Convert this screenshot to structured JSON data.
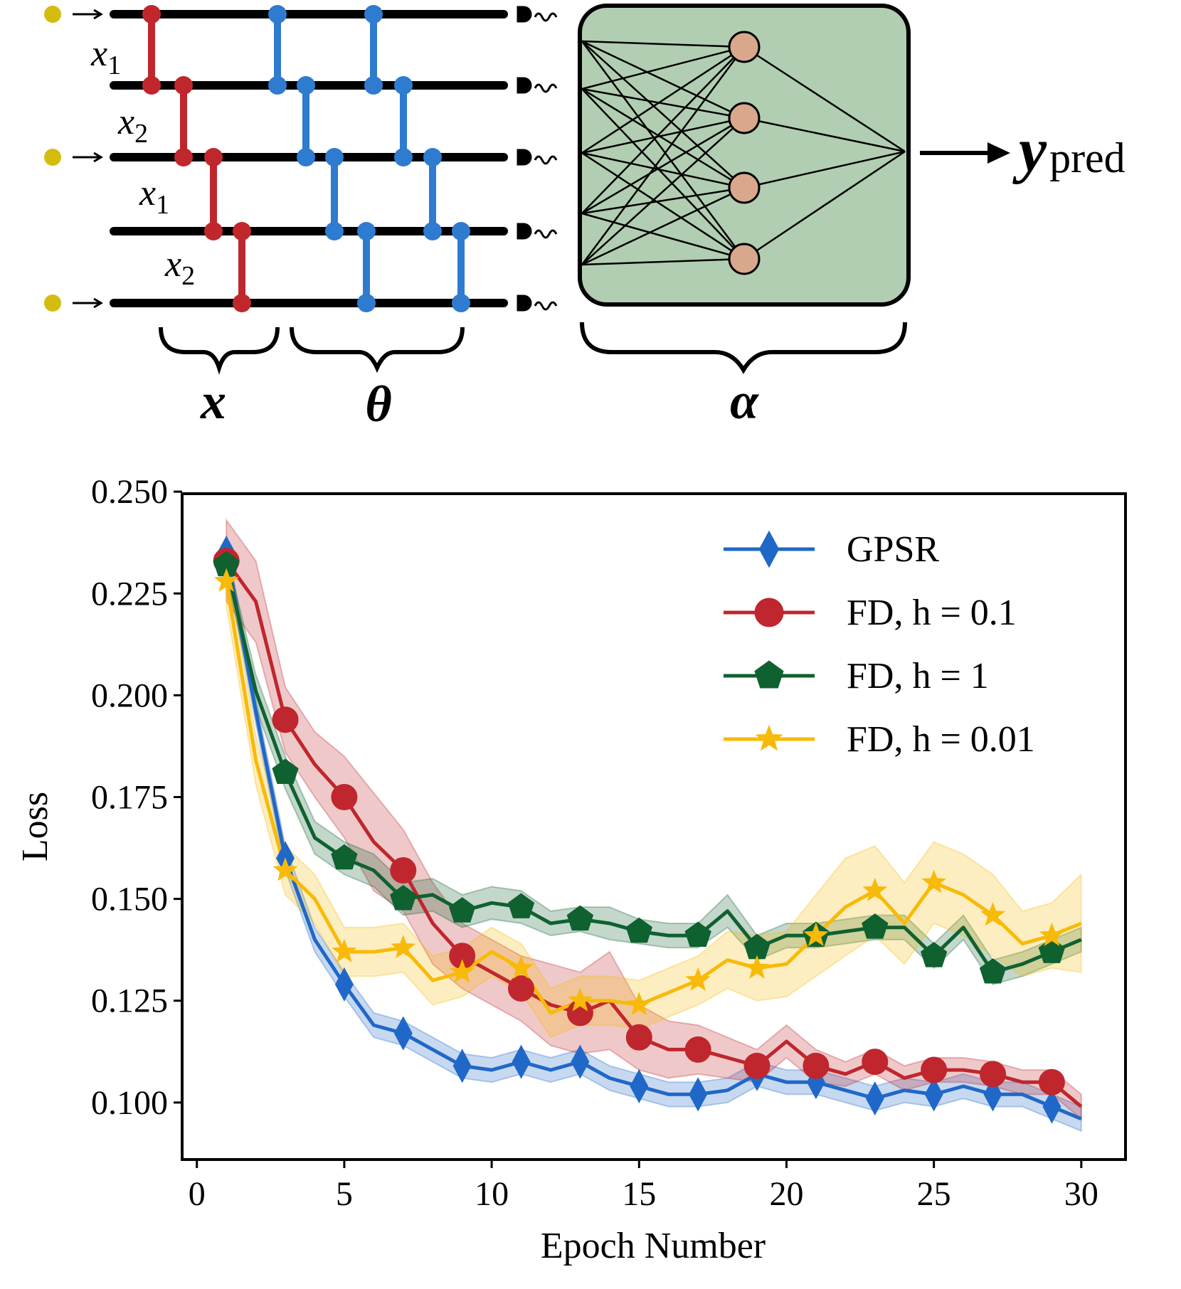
{
  "diagram": {
    "encoding_labels": [
      {
        "var": "x",
        "sub": "1"
      },
      {
        "var": "x",
        "sub": "2"
      },
      {
        "var": "x",
        "sub": "1"
      },
      {
        "var": "x",
        "sub": "2"
      }
    ],
    "brace_labels": {
      "features": "x",
      "params": "θ",
      "weights": "α"
    },
    "output": {
      "main": "y",
      "sub": "pred"
    },
    "colors": {
      "encoding": "#c0272d",
      "variational": "#2e7bd0",
      "nn_box": "#b2ceb2",
      "neuron": "#d9a88c",
      "qubit": "#d4bc0e"
    }
  },
  "chart_data": {
    "type": "line",
    "xlabel": "Epoch Number",
    "ylabel": "Loss",
    "xlim": [
      -0.5,
      31.5
    ],
    "ylim": [
      0.086,
      0.2495
    ],
    "xticks": [
      "0",
      "5",
      "10",
      "15",
      "20",
      "25",
      "30"
    ],
    "yticks": [
      "0.100",
      "0.125",
      "0.150",
      "0.175",
      "0.200",
      "0.225",
      "0.250"
    ],
    "legend_position": "upper right",
    "x": [
      1,
      2,
      3,
      4,
      5,
      6,
      7,
      8,
      9,
      10,
      11,
      12,
      13,
      14,
      15,
      16,
      17,
      18,
      19,
      20,
      21,
      22,
      23,
      24,
      25,
      26,
      27,
      28,
      29,
      30
    ],
    "series": [
      {
        "name": "GPSR",
        "color": "#2068c8",
        "marker": "diamond",
        "values": [
          0.235,
          0.196,
          0.16,
          0.14,
          0.129,
          0.119,
          0.117,
          0.113,
          0.109,
          0.108,
          0.11,
          0.108,
          0.11,
          0.106,
          0.104,
          0.102,
          0.102,
          0.103,
          0.107,
          0.105,
          0.105,
          0.103,
          0.101,
          0.103,
          0.102,
          0.104,
          0.102,
          0.102,
          0.099,
          0.096
        ],
        "band": [
          0.003,
          0.003,
          0.003,
          0.003,
          0.003,
          0.003,
          0.003,
          0.003,
          0.003,
          0.003,
          0.003,
          0.003,
          0.003,
          0.003,
          0.003,
          0.003,
          0.003,
          0.003,
          0.003,
          0.003,
          0.003,
          0.003,
          0.003,
          0.003,
          0.003,
          0.003,
          0.003,
          0.003,
          0.003,
          0.003
        ]
      },
      {
        "name": "FD, h = 0.1",
        "color": "#c0262d",
        "marker": "circle",
        "values": [
          0.233,
          0.223,
          0.194,
          0.183,
          0.175,
          0.164,
          0.157,
          0.144,
          0.136,
          0.132,
          0.128,
          0.124,
          0.122,
          0.125,
          0.116,
          0.113,
          0.113,
          0.111,
          0.109,
          0.115,
          0.109,
          0.107,
          0.11,
          0.106,
          0.108,
          0.108,
          0.107,
          0.105,
          0.105,
          0.099
        ],
        "band": [
          0.01,
          0.01,
          0.008,
          0.008,
          0.01,
          0.012,
          0.01,
          0.01,
          0.008,
          0.008,
          0.008,
          0.01,
          0.01,
          0.012,
          0.008,
          0.007,
          0.006,
          0.005,
          0.004,
          0.004,
          0.004,
          0.003,
          0.003,
          0.003,
          0.003,
          0.003,
          0.003,
          0.003,
          0.003,
          0.003
        ]
      },
      {
        "name": "FD, h = 1",
        "color": "#0f6130",
        "marker": "pentagon",
        "values": [
          0.232,
          0.201,
          0.181,
          0.165,
          0.16,
          0.157,
          0.15,
          0.151,
          0.147,
          0.149,
          0.148,
          0.144,
          0.145,
          0.144,
          0.142,
          0.141,
          0.141,
          0.147,
          0.138,
          0.141,
          0.141,
          0.142,
          0.143,
          0.143,
          0.136,
          0.143,
          0.132,
          0.134,
          0.137,
          0.14
        ],
        "band": [
          0.003,
          0.004,
          0.004,
          0.004,
          0.004,
          0.004,
          0.004,
          0.004,
          0.004,
          0.004,
          0.004,
          0.003,
          0.003,
          0.004,
          0.003,
          0.003,
          0.003,
          0.004,
          0.003,
          0.003,
          0.003,
          0.003,
          0.003,
          0.003,
          0.003,
          0.003,
          0.003,
          0.003,
          0.003,
          0.003
        ]
      },
      {
        "name": "FD, h = 0.01",
        "color": "#f8ba08",
        "marker": "star",
        "values": [
          0.228,
          0.184,
          0.157,
          0.15,
          0.137,
          0.137,
          0.138,
          0.13,
          0.132,
          0.137,
          0.133,
          0.122,
          0.125,
          0.125,
          0.124,
          0.127,
          0.13,
          0.135,
          0.133,
          0.134,
          0.141,
          0.148,
          0.152,
          0.144,
          0.154,
          0.151,
          0.146,
          0.139,
          0.141,
          0.144
        ],
        "band": [
          0.006,
          0.006,
          0.006,
          0.006,
          0.006,
          0.006,
          0.006,
          0.006,
          0.006,
          0.006,
          0.006,
          0.006,
          0.006,
          0.006,
          0.006,
          0.006,
          0.006,
          0.007,
          0.008,
          0.008,
          0.01,
          0.012,
          0.011,
          0.01,
          0.01,
          0.01,
          0.01,
          0.008,
          0.008,
          0.012
        ]
      }
    ]
  }
}
